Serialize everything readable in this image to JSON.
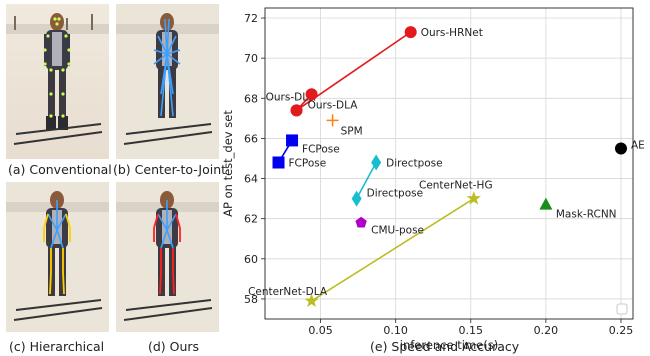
{
  "panels": [
    {
      "id": "a",
      "caption": "(a) Conventional"
    },
    {
      "id": "b",
      "caption": "(b) Center-to-Joint"
    },
    {
      "id": "c",
      "caption": "(c) Hierarchical"
    },
    {
      "id": "d",
      "caption": "(d) Ours"
    }
  ],
  "chart_caption": "(e) Speed and Accuracy",
  "colors": {
    "ours_hrnet": "#e31a1c",
    "ours_dla": "#e31a1c",
    "fcpose": "#0000ee",
    "directpose": "#17becf",
    "centernet": "#bcbd22",
    "cmu": "#b000c8",
    "spm": "#ff7f0e",
    "mask_rcnn": "#1a8c1a",
    "ae": "#000000",
    "skeleton_conventional": "#c8ff50",
    "skeleton_center": "#3ca0ff",
    "skeleton_hier_blue": "#3ca0ff",
    "skeleton_hier_yellow": "#ffd000",
    "skeleton_ours_red": "#ff2020",
    "skeleton_ours_blue": "#3ca0ff"
  },
  "chart_data": {
    "type": "scatter",
    "xlabel": "inference time(s)",
    "ylabel": "AP on test_dev set",
    "xlim": [
      0.013,
      0.258
    ],
    "ylim": [
      57,
      72.5
    ],
    "xticks": [
      0.05,
      0.1,
      0.15,
      0.2,
      0.25
    ],
    "xtick_labels": [
      "0.05",
      "0.10",
      "0.15",
      "0.20",
      "0.25"
    ],
    "yticks": [
      58,
      60,
      62,
      64,
      66,
      68,
      70,
      72
    ],
    "ytick_labels": [
      "58",
      "60",
      "62",
      "64",
      "66",
      "68",
      "70",
      "72"
    ],
    "grid": true,
    "series": [
      {
        "key": "ours_hrnet",
        "marker": "circle",
        "points": [
          [
            0.034,
            67.4
          ],
          [
            0.11,
            71.3
          ]
        ],
        "labels": [
          "",
          "Ours-HRNet"
        ]
      },
      {
        "key": "ours_dla",
        "marker": "circle",
        "points": [
          [
            0.034,
            67.4
          ],
          [
            0.044,
            68.2
          ]
        ],
        "labels": [
          "Ours-DLA",
          "Ours-DLA"
        ]
      },
      {
        "key": "fcpose",
        "marker": "square",
        "points": [
          [
            0.022,
            64.8
          ],
          [
            0.031,
            65.9
          ]
        ],
        "labels": [
          "FCPose",
          "FCPose"
        ]
      },
      {
        "key": "directpose",
        "marker": "diamond",
        "points": [
          [
            0.074,
            63.0
          ],
          [
            0.087,
            64.8
          ]
        ],
        "labels": [
          "Directpose",
          "Directpose"
        ]
      },
      {
        "key": "centernet",
        "marker": "star",
        "points": [
          [
            0.044,
            57.9
          ],
          [
            0.152,
            63.0
          ]
        ],
        "labels": [
          "CenterNet-DLA",
          "CenterNet-HG"
        ]
      },
      {
        "key": "cmu",
        "marker": "pentagon",
        "points": [
          [
            0.077,
            61.8
          ]
        ],
        "labels": [
          "CMU-pose"
        ]
      },
      {
        "key": "spm",
        "marker": "plus",
        "points": [
          [
            0.058,
            66.9
          ]
        ],
        "labels": [
          "SPM"
        ]
      },
      {
        "key": "mask_rcnn",
        "marker": "triangle",
        "points": [
          [
            0.2,
            62.7
          ]
        ],
        "labels": [
          "Mask-RCNN"
        ]
      },
      {
        "key": "ae",
        "marker": "circle",
        "points": [
          [
            0.25,
            65.5
          ]
        ],
        "labels": [
          "AE"
        ]
      }
    ]
  }
}
